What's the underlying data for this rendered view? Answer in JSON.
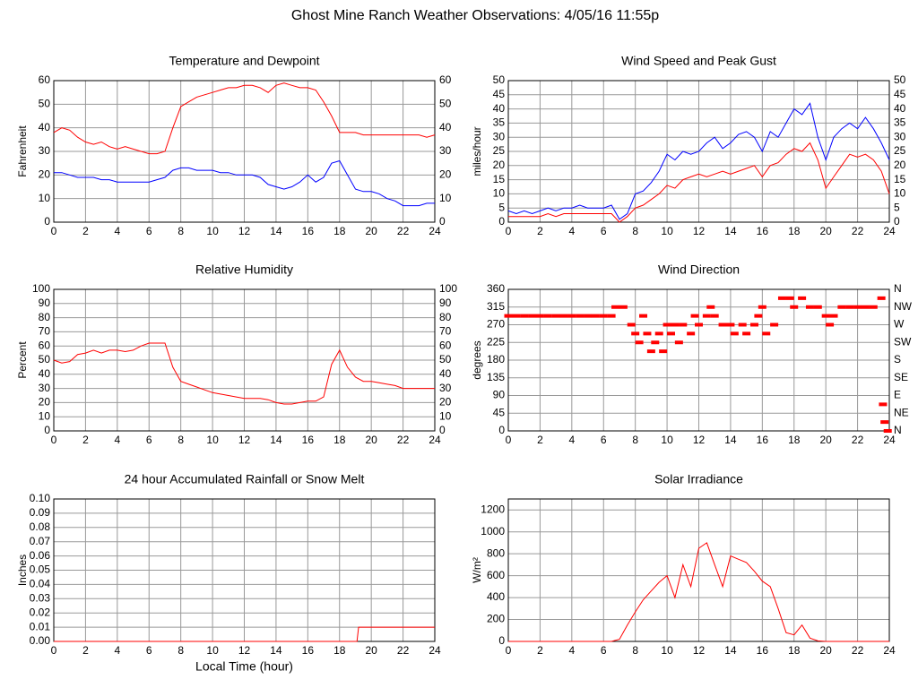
{
  "title": "Ghost Mine Ranch Weather Observations: 4/05/16 11:55p",
  "chart_data": [
    {
      "type": "line",
      "title": "Temperature and Dewpoint",
      "ylabel": "Fahrenheit",
      "x": [
        0,
        0.5,
        1,
        1.5,
        2,
        2.5,
        3,
        3.5,
        4,
        4.5,
        5,
        5.5,
        6,
        6.5,
        7,
        7.5,
        8,
        8.5,
        9,
        9.5,
        10,
        10.5,
        11,
        11.5,
        12,
        12.5,
        13,
        13.5,
        14,
        14.5,
        15,
        15.5,
        16,
        16.5,
        17,
        17.5,
        18,
        18.5,
        19,
        19.5,
        20,
        20.5,
        21,
        21.5,
        22,
        22.5,
        23,
        23.5,
        24
      ],
      "series": [
        {
          "color": "#ff0000",
          "values": [
            38,
            40,
            39,
            36,
            34,
            33,
            34,
            32,
            31,
            32,
            31,
            30,
            29,
            29,
            30,
            40,
            49,
            51,
            53,
            54,
            55,
            56,
            57,
            57,
            58,
            58,
            57,
            55,
            58,
            59,
            58,
            57,
            57,
            56,
            51,
            45,
            38,
            38,
            38,
            37,
            37,
            37,
            37,
            37,
            37,
            37,
            37,
            36,
            37
          ]
        },
        {
          "color": "#0000ff",
          "values": [
            21,
            21,
            20,
            19,
            19,
            19,
            18,
            18,
            17,
            17,
            17,
            17,
            17,
            18,
            19,
            22,
            23,
            23,
            22,
            22,
            22,
            21,
            21,
            20,
            20,
            20,
            19,
            16,
            15,
            14,
            15,
            17,
            20,
            17,
            19,
            25,
            26,
            20,
            14,
            13,
            13,
            12,
            10,
            9,
            7,
            7,
            7,
            8,
            8
          ]
        }
      ],
      "xlim": [
        0,
        24
      ],
      "xticks": [
        0,
        2,
        4,
        6,
        8,
        10,
        12,
        14,
        16,
        18,
        20,
        22,
        24
      ],
      "ylim": [
        0,
        60
      ],
      "yticks": [
        0,
        10,
        20,
        30,
        40,
        50,
        60
      ],
      "y2ticks": [
        0,
        10,
        20,
        30,
        40,
        50,
        60
      ],
      "grid": true
    },
    {
      "type": "line",
      "title": "Wind Speed and Peak Gust",
      "ylabel": "miles/hour",
      "x": [
        0,
        0.5,
        1,
        1.5,
        2,
        2.5,
        3,
        3.5,
        4,
        4.5,
        5,
        5.5,
        6,
        6.5,
        7,
        7.5,
        8,
        8.5,
        9,
        9.5,
        10,
        10.5,
        11,
        11.5,
        12,
        12.5,
        13,
        13.5,
        14,
        14.5,
        15,
        15.5,
        16,
        16.5,
        17,
        17.5,
        18,
        18.5,
        19,
        19.5,
        20,
        20.5,
        21,
        21.5,
        22,
        22.5,
        23,
        23.5,
        24
      ],
      "series": [
        {
          "color": "#0000ff",
          "values": [
            4,
            3,
            4,
            3,
            4,
            5,
            4,
            5,
            5,
            6,
            5,
            5,
            5,
            6,
            1,
            3,
            10,
            11,
            14,
            18,
            24,
            22,
            25,
            24,
            25,
            28,
            30,
            26,
            28,
            31,
            32,
            30,
            25,
            32,
            30,
            35,
            40,
            38,
            42,
            30,
            22,
            30,
            33,
            35,
            33,
            37,
            33,
            28,
            22
          ]
        },
        {
          "color": "#ff0000",
          "values": [
            2,
            2,
            2,
            2,
            2,
            3,
            2,
            3,
            3,
            3,
            3,
            3,
            3,
            3,
            0,
            2,
            5,
            6,
            8,
            10,
            13,
            12,
            15,
            16,
            17,
            16,
            17,
            18,
            17,
            18,
            19,
            20,
            16,
            20,
            21,
            24,
            26,
            25,
            28,
            22,
            12,
            16,
            20,
            24,
            23,
            24,
            22,
            18,
            10
          ]
        }
      ],
      "xlim": [
        0,
        24
      ],
      "xticks": [
        0,
        2,
        4,
        6,
        8,
        10,
        12,
        14,
        16,
        18,
        20,
        22,
        24
      ],
      "ylim": [
        0,
        50
      ],
      "yticks": [
        0,
        5,
        10,
        15,
        20,
        25,
        30,
        35,
        40,
        45,
        50
      ],
      "y2ticks": [
        0,
        5,
        10,
        15,
        20,
        25,
        30,
        35,
        40,
        45,
        50
      ],
      "grid": true
    },
    {
      "type": "line",
      "title": "Relative Humidity",
      "ylabel": "Percent",
      "x": [
        0,
        0.5,
        1,
        1.5,
        2,
        2.5,
        3,
        3.5,
        4,
        4.5,
        5,
        5.5,
        6,
        6.5,
        7,
        7.5,
        8,
        8.5,
        9,
        9.5,
        10,
        10.5,
        11,
        11.5,
        12,
        12.5,
        13,
        13.5,
        14,
        14.5,
        15,
        15.5,
        16,
        16.5,
        17,
        17.5,
        18,
        18.5,
        19,
        19.5,
        20,
        20.5,
        21,
        21.5,
        22,
        22.5,
        23,
        23.5,
        24
      ],
      "series": [
        {
          "color": "#ff0000",
          "values": [
            50,
            48,
            49,
            54,
            55,
            57,
            55,
            57,
            57,
            56,
            57,
            60,
            62,
            62,
            62,
            45,
            35,
            33,
            31,
            29,
            27,
            26,
            25,
            24,
            23,
            23,
            23,
            22,
            20,
            19,
            19,
            20,
            21,
            21,
            24,
            47,
            57,
            45,
            38,
            35,
            35,
            34,
            33,
            32,
            30,
            30,
            30,
            30,
            30
          ]
        }
      ],
      "xlim": [
        0,
        24
      ],
      "xticks": [
        0,
        2,
        4,
        6,
        8,
        10,
        12,
        14,
        16,
        18,
        20,
        22,
        24
      ],
      "ylim": [
        0,
        100
      ],
      "yticks": [
        0,
        10,
        20,
        30,
        40,
        50,
        60,
        70,
        80,
        90,
        100
      ],
      "y2ticks": [
        0,
        10,
        20,
        30,
        40,
        50,
        60,
        70,
        80,
        90,
        100
      ],
      "grid": true
    },
    {
      "type": "scatter",
      "title": "Wind Direction",
      "ylabel": "degrees",
      "x": [
        0,
        0.5,
        1,
        1.5,
        2,
        2.5,
        3,
        3.5,
        4,
        4.5,
        5,
        5.5,
        6,
        6.5,
        6.75,
        7.25,
        7.75,
        8,
        8.25,
        8.5,
        8.75,
        9,
        9.25,
        9.5,
        9.75,
        10,
        10.25,
        10.5,
        10.75,
        11,
        11.5,
        11.75,
        12,
        12.5,
        12.75,
        13,
        13.5,
        14,
        14.25,
        14.75,
        15,
        15.5,
        15.75,
        16,
        16.25,
        16.75,
        17.25,
        17.75,
        18,
        18.5,
        19,
        19.5,
        20,
        20.25,
        20.5,
        21,
        21.5,
        22,
        22.5,
        23,
        23.5,
        23.6,
        23.7,
        23.9
      ],
      "series": [
        {
          "color": "#ff0000",
          "values": [
            292.5,
            292.5,
            292.5,
            292.5,
            292.5,
            292.5,
            292.5,
            292.5,
            292.5,
            292.5,
            292.5,
            292.5,
            292.5,
            292.5,
            315,
            315,
            270,
            247.5,
            225,
            292.5,
            247.5,
            202.5,
            225,
            247.5,
            202.5,
            270,
            247.5,
            270,
            225,
            270,
            247.5,
            292.5,
            270,
            292.5,
            315,
            292.5,
            270,
            270,
            247.5,
            270,
            247.5,
            270,
            292.5,
            315,
            247.5,
            270,
            337.5,
            337.5,
            315,
            337.5,
            315,
            315,
            292.5,
            270,
            292.5,
            315,
            315,
            315,
            315,
            315,
            337.5,
            67.5,
            22.5,
            0
          ]
        }
      ],
      "xlim": [
        0,
        24
      ],
      "xticks": [
        0,
        2,
        4,
        6,
        8,
        10,
        12,
        14,
        16,
        18,
        20,
        22,
        24
      ],
      "ylim": [
        0,
        360
      ],
      "yticks": [
        0,
        45,
        90,
        135,
        180,
        225,
        270,
        315,
        360
      ],
      "y2ticks": [
        {
          "value": 0,
          "label": "N"
        },
        {
          "value": 45,
          "label": "NE"
        },
        {
          "value": 90,
          "label": "E"
        },
        {
          "value": 135,
          "label": "SE"
        },
        {
          "value": 180,
          "label": "S"
        },
        {
          "value": 225,
          "label": "SW"
        },
        {
          "value": 270,
          "label": "W"
        },
        {
          "value": 315,
          "label": "NW"
        },
        {
          "value": 360,
          "label": "N"
        }
      ],
      "grid": true
    },
    {
      "type": "line",
      "title": "24 hour Accumulated Rainfall or Snow Melt",
      "ylabel": "Inches",
      "xlabel": "Local Time (hour)",
      "x": [
        0,
        19.1,
        19.2,
        24
      ],
      "series": [
        {
          "color": "#ff0000",
          "values": [
            0,
            0,
            0.01,
            0.01
          ]
        }
      ],
      "xlim": [
        0,
        24
      ],
      "xticks": [
        0,
        2,
        4,
        6,
        8,
        10,
        12,
        14,
        16,
        18,
        20,
        22,
        24
      ],
      "ylim": [
        0,
        0.1
      ],
      "yticks": [
        {
          "value": 0,
          "label": "0.00"
        },
        {
          "value": 0.01,
          "label": "0.01"
        },
        {
          "value": 0.02,
          "label": "0.02"
        },
        {
          "value": 0.03,
          "label": "0.03"
        },
        {
          "value": 0.04,
          "label": "0.04"
        },
        {
          "value": 0.05,
          "label": "0.05"
        },
        {
          "value": 0.06,
          "label": "0.06"
        },
        {
          "value": 0.07,
          "label": "0.07"
        },
        {
          "value": 0.08,
          "label": "0.08"
        },
        {
          "value": 0.09,
          "label": "0.09"
        },
        {
          "value": 0.1,
          "label": "0.10"
        }
      ],
      "grid": true
    },
    {
      "type": "line",
      "title": "Solar Irradiance",
      "ylabel": "W/m²",
      "x": [
        0,
        0.5,
        1,
        1.5,
        2,
        2.5,
        3,
        3.5,
        4,
        4.5,
        5,
        5.5,
        6,
        6.5,
        7,
        7.5,
        8,
        8.5,
        9,
        9.5,
        10,
        10.5,
        11,
        11.5,
        12,
        12.5,
        13,
        13.5,
        14,
        14.5,
        15,
        15.5,
        16,
        16.5,
        17,
        17.5,
        18,
        18.5,
        19,
        19.5,
        20,
        20.5,
        21,
        21.5,
        22,
        22.5,
        23,
        23.5,
        24
      ],
      "series": [
        {
          "color": "#ff0000",
          "values": [
            0,
            0,
            0,
            0,
            0,
            0,
            0,
            0,
            0,
            0,
            0,
            0,
            0,
            0,
            20,
            150,
            270,
            380,
            460,
            540,
            600,
            400,
            700,
            500,
            850,
            900,
            700,
            500,
            780,
            750,
            720,
            640,
            550,
            500,
            300,
            80,
            60,
            150,
            30,
            5,
            0,
            0,
            0,
            0,
            0,
            0,
            0,
            0,
            0
          ]
        }
      ],
      "xlim": [
        0,
        24
      ],
      "xticks": [
        0,
        2,
        4,
        6,
        8,
        10,
        12,
        14,
        16,
        18,
        20,
        22,
        24
      ],
      "ylim": [
        0,
        1300
      ],
      "yticks": [
        0,
        200,
        400,
        600,
        800,
        1000,
        1200
      ],
      "grid": true
    }
  ]
}
